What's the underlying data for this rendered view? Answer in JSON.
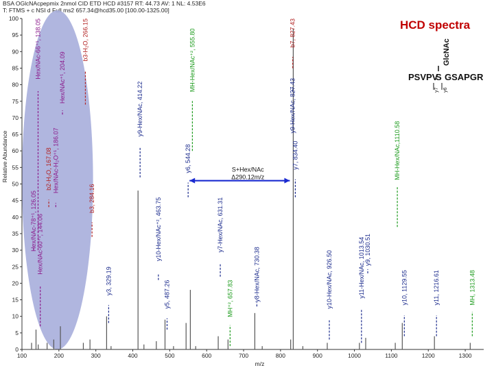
{
  "header": {
    "line1": "BSA OGlcNAcpepmix 2nmol CID ETD HCD #3157 RT: 44.73 AV: 1 NL: 4.53E6",
    "line2": "T: FTMS + c NSI d Full ms2 657.34@hcd35.00 [100.00-1325.00]"
  },
  "title": "HCD spectra",
  "sequence": {
    "left": "PSVPV",
    "s": "S",
    "right": "GSAPGR",
    "glycan": "GlcNAc",
    "y7": "y7",
    "y6": "y6"
  },
  "colors": {
    "peak": "#555555",
    "oxonium": "#8b1a8b",
    "b_ion": "#b22222",
    "y_ion": "#1a2a8c",
    "glyco_loss": "#1a9a1a",
    "highlight": "#a7aedc"
  },
  "chart_data": {
    "type": "bar",
    "xlabel": "m/z",
    "ylabel": "Relative Abundance",
    "xlim": [
      100,
      1350
    ],
    "ylim": [
      0,
      100
    ],
    "xticks": [
      "100",
      "200",
      "300",
      "400",
      "500",
      "600",
      "700",
      "800",
      "900",
      "1000",
      "1100",
      "1200",
      "1300"
    ],
    "yticks": [
      "0",
      "5",
      "10",
      "15",
      "20",
      "25",
      "30",
      "35",
      "40",
      "45",
      "50",
      "55",
      "60",
      "65",
      "70",
      "75",
      "80",
      "85",
      "90",
      "95",
      "100"
    ],
    "grid": false,
    "peaks": [
      {
        "mz": 126.05,
        "rel": 2
      },
      {
        "mz": 138.05,
        "rel": 6
      },
      {
        "mz": 144.06,
        "rel": 1.5
      },
      {
        "mz": 168.07,
        "rel": 2
      },
      {
        "mz": 186.07,
        "rel": 3
      },
      {
        "mz": 204.09,
        "rel": 7
      },
      {
        "mz": 266.15,
        "rel": 2
      },
      {
        "mz": 284.16,
        "rel": 3
      },
      {
        "mz": 329.19,
        "rel": 10
      },
      {
        "mz": 341.2,
        "rel": 1
      },
      {
        "mz": 414.22,
        "rel": 48
      },
      {
        "mz": 430.2,
        "rel": 1.5
      },
      {
        "mz": 463.75,
        "rel": 2.5
      },
      {
        "mz": 487.26,
        "rel": 9
      },
      {
        "mz": 510.3,
        "rel": 1
      },
      {
        "mz": 544.28,
        "rel": 8
      },
      {
        "mz": 555.8,
        "rel": 18
      },
      {
        "mz": 570.3,
        "rel": 1
      },
      {
        "mz": 631.31,
        "rel": 4
      },
      {
        "mz": 657.83,
        "rel": 3
      },
      {
        "mz": 730.38,
        "rel": 11
      },
      {
        "mz": 750.4,
        "rel": 1
      },
      {
        "mz": 827.43,
        "rel": 3
      },
      {
        "mz": 834.4,
        "rel": 97
      },
      {
        "mz": 860.4,
        "rel": 1
      },
      {
        "mz": 926.5,
        "rel": 2
      },
      {
        "mz": 1013.54,
        "rel": 2
      },
      {
        "mz": 1030.51,
        "rel": 3.5
      },
      {
        "mz": 1110.58,
        "rel": 2
      },
      {
        "mz": 1129.55,
        "rel": 8
      },
      {
        "mz": 1216.61,
        "rel": 4
      },
      {
        "mz": 1313.48,
        "rel": 2
      }
    ],
    "annotations": [
      {
        "text": "Hex/NAc-66⁺¹, 138.05",
        "mz": 138.05,
        "top_rel": 100,
        "bottom_rel": 30,
        "type": "oxonium"
      },
      {
        "text": "Hex/NAc-78⁺¹, 126.05",
        "mz": 126.05,
        "top_rel": 48,
        "bottom_rel": 30,
        "type": "oxonium"
      },
      {
        "text": "Hex/NAc-60⁺¹, 144.06",
        "mz": 144.06,
        "top_rel": 41,
        "bottom_rel": 7,
        "type": "oxonium"
      },
      {
        "text": "b2-H₂O, 167.08",
        "mz": 167.08,
        "top_rel": 61,
        "bottom_rel": 43,
        "type": "b"
      },
      {
        "text": "Hex/NAc-H₂O⁺¹, 186.07",
        "mz": 186.07,
        "top_rel": 67,
        "bottom_rel": 43,
        "type": "oxonium"
      },
      {
        "text": "Hex/NAc⁺¹, 204.09",
        "mz": 204.09,
        "top_rel": 90,
        "bottom_rel": 71,
        "type": "oxonium"
      },
      {
        "text": "b3-H₂O, 266.15",
        "mz": 266.15,
        "top_rel": 100,
        "bottom_rel": 74,
        "type": "b"
      },
      {
        "text": "b3, 284.16",
        "mz": 284.16,
        "top_rel": 50,
        "bottom_rel": 34,
        "type": "b"
      },
      {
        "text": "y3, 329.19",
        "mz": 329.19,
        "top_rel": 25,
        "bottom_rel": 8,
        "type": "y"
      },
      {
        "text": "y9-Hex/NAc, 414.22",
        "mz": 414.22,
        "top_rel": 81,
        "bottom_rel": 52,
        "type": "y"
      },
      {
        "text": "y10-Hex/NAc⁺², 463.75",
        "mz": 463.75,
        "top_rel": 46,
        "bottom_rel": 21,
        "type": "y"
      },
      {
        "text": "y5, 487.26",
        "mz": 487.26,
        "top_rel": 21,
        "bottom_rel": 6,
        "type": "y"
      },
      {
        "text": "y6, 544.28",
        "mz": 544.28,
        "top_rel": 62,
        "bottom_rel": 46,
        "type": "y"
      },
      {
        "text": "MH-Hex/NAc⁺², 555.80",
        "mz": 555.8,
        "top_rel": 97,
        "bottom_rel": 60,
        "type": "glyco"
      },
      {
        "text": "y7-Hex/NAc, 631.31",
        "mz": 631.31,
        "top_rel": 46,
        "bottom_rel": 22,
        "type": "y"
      },
      {
        "text": "MH⁺², 657.83",
        "mz": 657.83,
        "top_rel": 21,
        "bottom_rel": 1,
        "type": "glyco"
      },
      {
        "text": "y8-Hex/NAc, 730.38",
        "mz": 730.38,
        "top_rel": 31,
        "bottom_rel": 13,
        "type": "y"
      },
      {
        "text": "b7, 827.43",
        "mz": 827.43,
        "top_rel": 100,
        "bottom_rel": 85,
        "type": "b"
      },
      {
        "text": "y9-Hex/NAc, 827.43",
        "mz": 827.43,
        "top_rel": 82,
        "bottom_rel": 78,
        "type": "y"
      },
      {
        "text": "y7, 834.40",
        "mz": 834.4,
        "top_rel": 63,
        "bottom_rel": 46,
        "type": "y"
      },
      {
        "text": "y10-Hex/NAc, 926.50",
        "mz": 926.5,
        "top_rel": 30,
        "bottom_rel": 3,
        "type": "y"
      },
      {
        "text": "y11-Hex/NAc, 1013.54",
        "mz": 1013.54,
        "top_rel": 34,
        "bottom_rel": 2,
        "type": "y"
      },
      {
        "text": "y9, 1030.51",
        "mz": 1030.51,
        "top_rel": 35,
        "bottom_rel": 23,
        "type": "y"
      },
      {
        "text": "MH-Hex/NAc,1110.58",
        "mz": 1110.58,
        "top_rel": 69,
        "bottom_rel": 37,
        "type": "glyco"
      },
      {
        "text": "y10, 1129.55",
        "mz": 1129.55,
        "top_rel": 24,
        "bottom_rel": 4,
        "type": "y"
      },
      {
        "text": "y11, 1216.61",
        "mz": 1216.61,
        "top_rel": 24,
        "bottom_rel": 4,
        "type": "y"
      },
      {
        "text": "MH, 1313.48",
        "mz": 1313.48,
        "top_rel": 24,
        "bottom_rel": 4,
        "type": "glyco"
      }
    ],
    "delta_label": {
      "line1": "S+Hex/NAc",
      "line2": "Δ290.12m/z"
    },
    "delta_range": [
      544.28,
      834.4
    ],
    "delta_rel": 51,
    "highlight_range": [
      100,
      285
    ]
  }
}
